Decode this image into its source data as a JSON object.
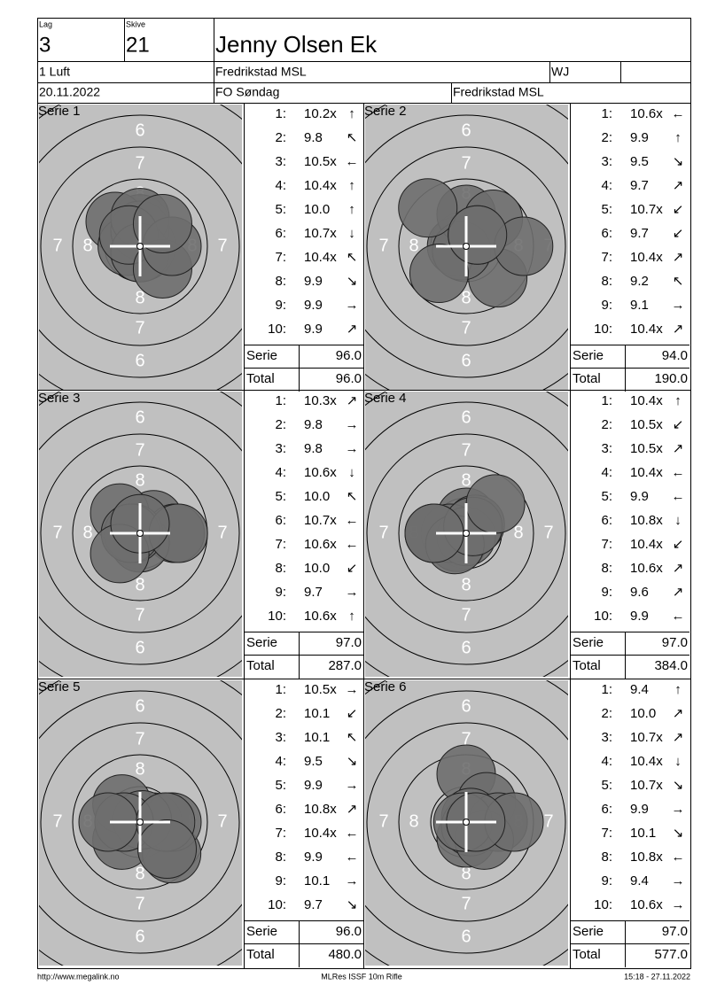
{
  "header": {
    "lag_label": "Lag",
    "lag": "3",
    "skive_label": "Skive",
    "skive": "21",
    "name": "Jenny Olsen Ek",
    "class": "1 Luft",
    "club": "Fredrikstad MSL",
    "category": "WJ",
    "date": "20.11.2022",
    "event": "FO Søndag",
    "venue": "Fredrikstad MSL"
  },
  "target": {
    "ring_numbers": [
      "6",
      "7",
      "8"
    ]
  },
  "shot_numbers": [
    "1:",
    "2:",
    "3:",
    "4:",
    "5:",
    "6:",
    "7:",
    "8:",
    "9:",
    "10:"
  ],
  "serie_label": "Serie",
  "total_label": "Total",
  "series": [
    {
      "label": "Serie 1",
      "shots": [
        {
          "score": "10.2x",
          "arrow": "↑"
        },
        {
          "score": "9.8",
          "arrow": "↖"
        },
        {
          "score": "10.5x",
          "arrow": "←"
        },
        {
          "score": "10.4x",
          "arrow": "↑"
        },
        {
          "score": "10.0",
          "arrow": "↑"
        },
        {
          "score": "10.7x",
          "arrow": "↓"
        },
        {
          "score": "10.4x",
          "arrow": "↖"
        },
        {
          "score": "9.9",
          "arrow": "↘"
        },
        {
          "score": "9.9",
          "arrow": "→"
        },
        {
          "score": "9.9",
          "arrow": "↗"
        }
      ],
      "serie": "96.0",
      "total": "96.0"
    },
    {
      "label": "Serie 2",
      "shots": [
        {
          "score": "10.6x",
          "arrow": "←"
        },
        {
          "score": "9.9",
          "arrow": "↑"
        },
        {
          "score": "9.5",
          "arrow": "↘"
        },
        {
          "score": "9.7",
          "arrow": "↗"
        },
        {
          "score": "10.7x",
          "arrow": "↙"
        },
        {
          "score": "9.7",
          "arrow": "↙"
        },
        {
          "score": "10.4x",
          "arrow": "↗"
        },
        {
          "score": "9.2",
          "arrow": "↖"
        },
        {
          "score": "9.1",
          "arrow": "→"
        },
        {
          "score": "10.4x",
          "arrow": "↗"
        }
      ],
      "serie": "94.0",
      "total": "190.0"
    },
    {
      "label": "Serie 3",
      "shots": [
        {
          "score": "10.3x",
          "arrow": "↗"
        },
        {
          "score": "9.8",
          "arrow": "→"
        },
        {
          "score": "9.8",
          "arrow": "→"
        },
        {
          "score": "10.6x",
          "arrow": "↓"
        },
        {
          "score": "10.0",
          "arrow": "↖"
        },
        {
          "score": "10.7x",
          "arrow": "←"
        },
        {
          "score": "10.6x",
          "arrow": "←"
        },
        {
          "score": "10.0",
          "arrow": "↙"
        },
        {
          "score": "9.7",
          "arrow": "→"
        },
        {
          "score": "10.6x",
          "arrow": "↑"
        }
      ],
      "serie": "97.0",
      "total": "287.0"
    },
    {
      "label": "Serie 4",
      "shots": [
        {
          "score": "10.4x",
          "arrow": "↑"
        },
        {
          "score": "10.5x",
          "arrow": "↙"
        },
        {
          "score": "10.5x",
          "arrow": "↗"
        },
        {
          "score": "10.4x",
          "arrow": "←"
        },
        {
          "score": "9.9",
          "arrow": "←"
        },
        {
          "score": "10.8x",
          "arrow": "↓"
        },
        {
          "score": "10.4x",
          "arrow": "↙"
        },
        {
          "score": "10.6x",
          "arrow": "↗"
        },
        {
          "score": "9.6",
          "arrow": "↗"
        },
        {
          "score": "9.9",
          "arrow": "←"
        }
      ],
      "serie": "97.0",
      "total": "384.0"
    },
    {
      "label": "Serie 5",
      "shots": [
        {
          "score": "10.5x",
          "arrow": "→"
        },
        {
          "score": "10.1",
          "arrow": "↙"
        },
        {
          "score": "10.1",
          "arrow": "↖"
        },
        {
          "score": "9.5",
          "arrow": "↘"
        },
        {
          "score": "9.9",
          "arrow": "→"
        },
        {
          "score": "10.8x",
          "arrow": "↗"
        },
        {
          "score": "10.4x",
          "arrow": "←"
        },
        {
          "score": "9.9",
          "arrow": "←"
        },
        {
          "score": "10.1",
          "arrow": "→"
        },
        {
          "score": "9.7",
          "arrow": "↘"
        }
      ],
      "serie": "96.0",
      "total": "480.0"
    },
    {
      "label": "Serie 6",
      "shots": [
        {
          "score": "9.4",
          "arrow": "↑"
        },
        {
          "score": "10.0",
          "arrow": "↗"
        },
        {
          "score": "10.7x",
          "arrow": "↗"
        },
        {
          "score": "10.4x",
          "arrow": "↓"
        },
        {
          "score": "10.7x",
          "arrow": "↘"
        },
        {
          "score": "9.9",
          "arrow": "→"
        },
        {
          "score": "10.1",
          "arrow": "↘"
        },
        {
          "score": "10.8x",
          "arrow": "←"
        },
        {
          "score": "9.4",
          "arrow": "→"
        },
        {
          "score": "10.6x",
          "arrow": "→"
        }
      ],
      "serie": "97.0",
      "total": "577.0"
    }
  ],
  "footer": {
    "left": "http://www.megalink.no",
    "center": "MLRes ISSF 10m Rifle",
    "right": "15:18 - 27.11.2022"
  }
}
